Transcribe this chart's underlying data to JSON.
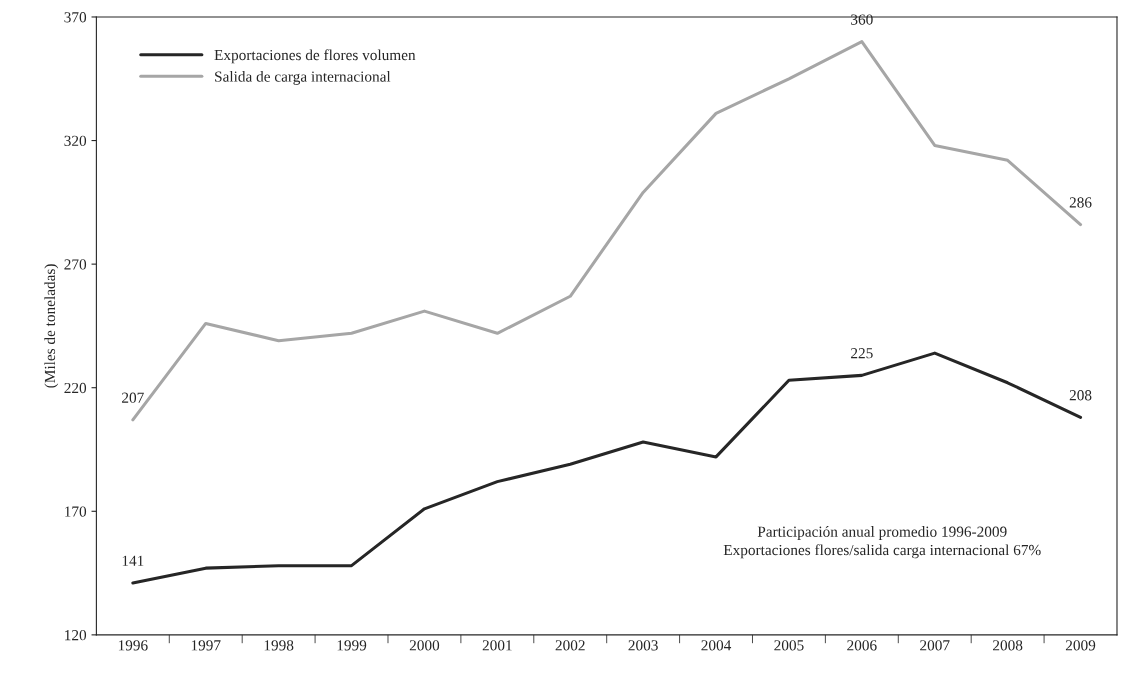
{
  "chart_data": {
    "type": "line",
    "ylabel": "(Miles de toneladas)",
    "categories": [
      "1996",
      "1997",
      "1998",
      "1999",
      "2000",
      "2001",
      "2002",
      "2003",
      "2004",
      "2005",
      "2006",
      "2007",
      "2008",
      "2009"
    ],
    "series": [
      {
        "name": "Exportaciones de flores volumen",
        "color": "#262626",
        "values": [
          141,
          147,
          148,
          148,
          171,
          182,
          189,
          198,
          192,
          223,
          225,
          234,
          222,
          208
        ],
        "value_labels": [
          "141",
          null,
          null,
          null,
          null,
          null,
          null,
          null,
          null,
          null,
          "225",
          null,
          null,
          "208"
        ]
      },
      {
        "name": "Salida de carga internacional",
        "color": "#a6a6a6",
        "values": [
          207,
          246,
          239,
          242,
          251,
          242,
          257,
          299,
          331,
          345,
          360,
          318,
          312,
          286
        ],
        "value_labels": [
          "207",
          null,
          null,
          null,
          null,
          null,
          null,
          null,
          null,
          null,
          "360",
          null,
          null,
          "286"
        ]
      }
    ],
    "ylim": [
      120,
      370
    ],
    "yticks": [
      120,
      170,
      220,
      270,
      320,
      370
    ],
    "grid": false,
    "legend": "top left",
    "marker": "none",
    "line_style": "solid",
    "annotations": [
      "Participación anual promedio 1996-2009",
      "Exportaciones flores/salida carga internacional 67%"
    ]
  }
}
